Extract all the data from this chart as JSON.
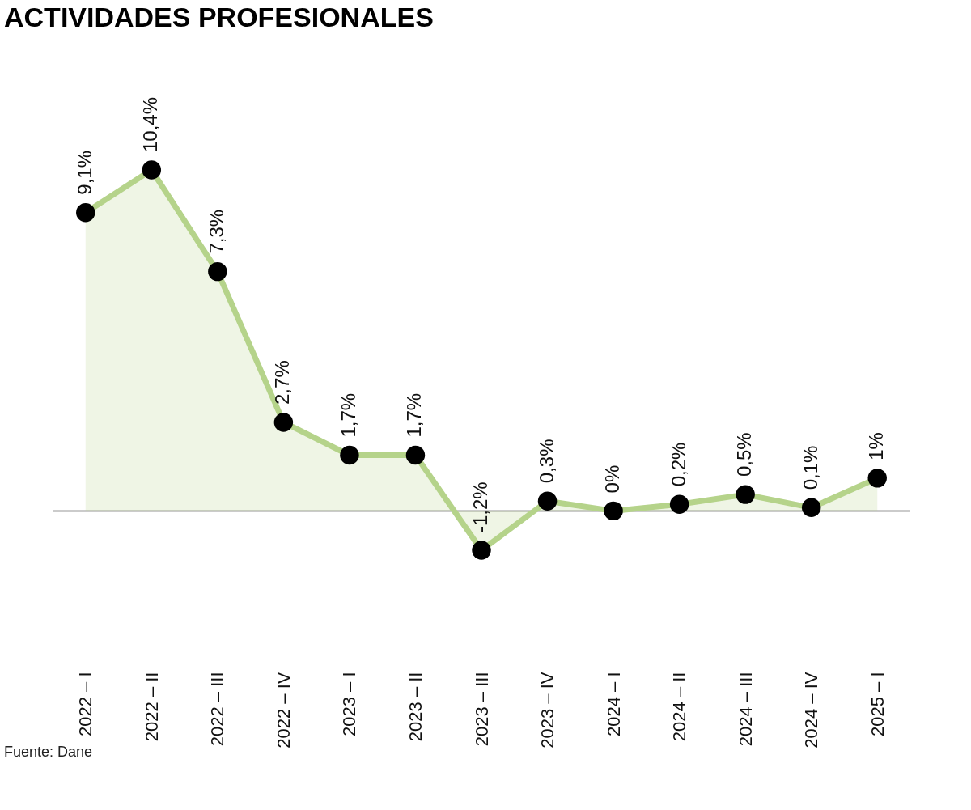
{
  "chart_data": {
    "type": "area",
    "title": "ACTIVIDADES PROFESIONALES",
    "categories": [
      "2022 – I",
      "2022 – II",
      "2022 – III",
      "2022 – IV",
      "2023 – I",
      "2023 – II",
      "2023 – III",
      "2023 – IV",
      "2024 – I",
      "2024 – II",
      "2024 – III",
      "2024 – IV",
      "2025 – I"
    ],
    "series": [
      {
        "color": "#b5d38a",
        "values": [
          9.1,
          10.4,
          7.3,
          2.7,
          1.7,
          1.7,
          -1.2,
          0.3,
          0,
          0.2,
          0.5,
          0.1,
          1
        ],
        "value_labels": [
          "9,1%",
          "10,4%",
          "7,3%",
          "2,7%",
          "1,7%",
          "1,7%",
          "-1,2%",
          "0,3%",
          "0%",
          "0,2%",
          "0,5%",
          "0,1%",
          "1%"
        ]
      }
    ],
    "marker": "circle",
    "ref_lines": [
      {
        "axis": "y",
        "value": 0,
        "color": "#333333"
      }
    ],
    "annotations": [
      "Fuente: Dane"
    ]
  }
}
